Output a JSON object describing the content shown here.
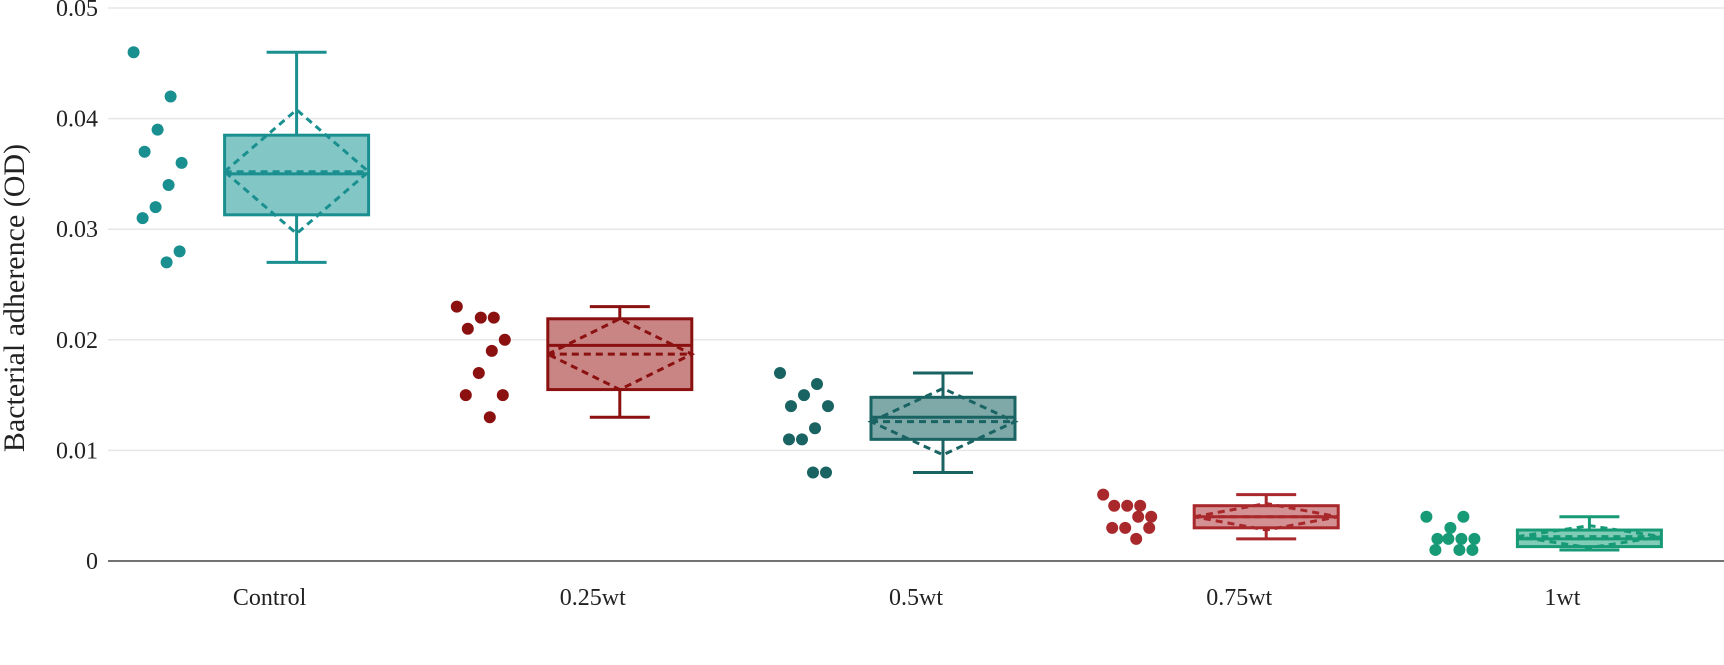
{
  "chart_data": {
    "type": "box",
    "title": "",
    "xlabel": "",
    "ylabel": "Bacterial adherence (OD)",
    "ylim": [
      0,
      0.05
    ],
    "yticks": [
      0,
      0.01,
      0.02,
      0.03,
      0.04,
      0.05
    ],
    "ytick_labels": [
      "0",
      "0.01",
      "0.02",
      "0.03",
      "0.04",
      "0.05"
    ],
    "grid": true,
    "legend": "none",
    "categories": [
      "Control",
      "0.25wt",
      "0.5wt",
      "0.75wt",
      "1wt"
    ],
    "groups": [
      {
        "category": "Control",
        "color": "#1a8f8f",
        "fill": "#83c6c6",
        "points": [
          0.046,
          0.042,
          0.039,
          0.037,
          0.036,
          0.034,
          0.032,
          0.031,
          0.028,
          0.027
        ],
        "box": {
          "min": 0.027,
          "q1": 0.0313,
          "median": 0.035,
          "q3": 0.0385,
          "max": 0.046
        },
        "mean": 0.0352,
        "sd": 0.0056
      },
      {
        "category": "0.25wt",
        "color": "#8b1010",
        "fill": "#c98484",
        "points": [
          0.023,
          0.022,
          0.022,
          0.021,
          0.02,
          0.019,
          0.017,
          0.015,
          0.015,
          0.013
        ],
        "box": {
          "min": 0.013,
          "q1": 0.0155,
          "median": 0.0195,
          "q3": 0.0219,
          "max": 0.023
        },
        "mean": 0.0187,
        "sd": 0.0032
      },
      {
        "category": "0.5wt",
        "color": "#1a6363",
        "fill": "#7fa9a9",
        "points": [
          0.017,
          0.016,
          0.015,
          0.014,
          0.014,
          0.012,
          0.011,
          0.011,
          0.008,
          0.008
        ],
        "box": {
          "min": 0.008,
          "q1": 0.011,
          "median": 0.013,
          "q3": 0.0148,
          "max": 0.017
        },
        "mean": 0.0126,
        "sd": 0.003
      },
      {
        "category": "0.75wt",
        "color": "#a8282c",
        "fill": "#d49193",
        "points": [
          0.006,
          0.005,
          0.005,
          0.005,
          0.004,
          0.004,
          0.003,
          0.003,
          0.003,
          0.002
        ],
        "box": {
          "min": 0.002,
          "q1": 0.003,
          "median": 0.004,
          "q3": 0.005,
          "max": 0.006
        },
        "mean": 0.004,
        "sd": 0.0012
      },
      {
        "category": "1wt",
        "color": "#179a76",
        "fill": "#80ccb6",
        "points": [
          0.004,
          0.004,
          0.003,
          0.002,
          0.002,
          0.002,
          0.002,
          0.001,
          0.001,
          0.001
        ],
        "box": {
          "min": 0.001,
          "q1": 0.0013,
          "median": 0.002,
          "q3": 0.0028,
          "max": 0.004
        },
        "mean": 0.0022,
        "sd": 0.001
      }
    ]
  }
}
